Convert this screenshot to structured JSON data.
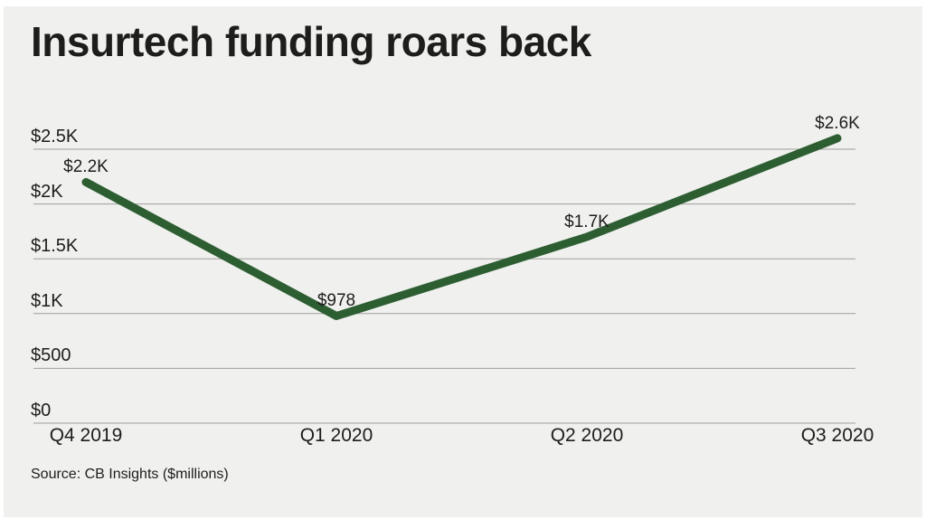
{
  "title": "Insurtech funding roars back",
  "source_note": "Source: CB Insights ($millions)",
  "colors": {
    "page_background": "#ffffff",
    "panel_background": "#f0f0ee",
    "line": "#2d5e32",
    "grid": "#9e9e9b",
    "text": "#1d1d1b"
  },
  "chart_data": {
    "type": "line",
    "title": "Insurtech funding roars back",
    "units": "$millions",
    "categories": [
      "Q4 2019",
      "Q1 2020",
      "Q2 2020",
      "Q3 2020"
    ],
    "series": [
      {
        "name": "Insurtech funding",
        "values": [
          2200,
          978,
          1700,
          2600
        ],
        "point_labels": [
          "$2.2K",
          "$978",
          "$1.7K",
          "$2.6K"
        ]
      }
    ],
    "y_ticks": [
      {
        "value": 0,
        "label": "$0"
      },
      {
        "value": 500,
        "label": "$500"
      },
      {
        "value": 1000,
        "label": "$1K"
      },
      {
        "value": 1500,
        "label": "$1.5K"
      },
      {
        "value": 2000,
        "label": "$2K"
      },
      {
        "value": 2500,
        "label": "$2.5K"
      }
    ],
    "ylim": [
      0,
      2500
    ],
    "grid": true,
    "legend": false,
    "source": "Source: CB Insights ($millions)"
  }
}
